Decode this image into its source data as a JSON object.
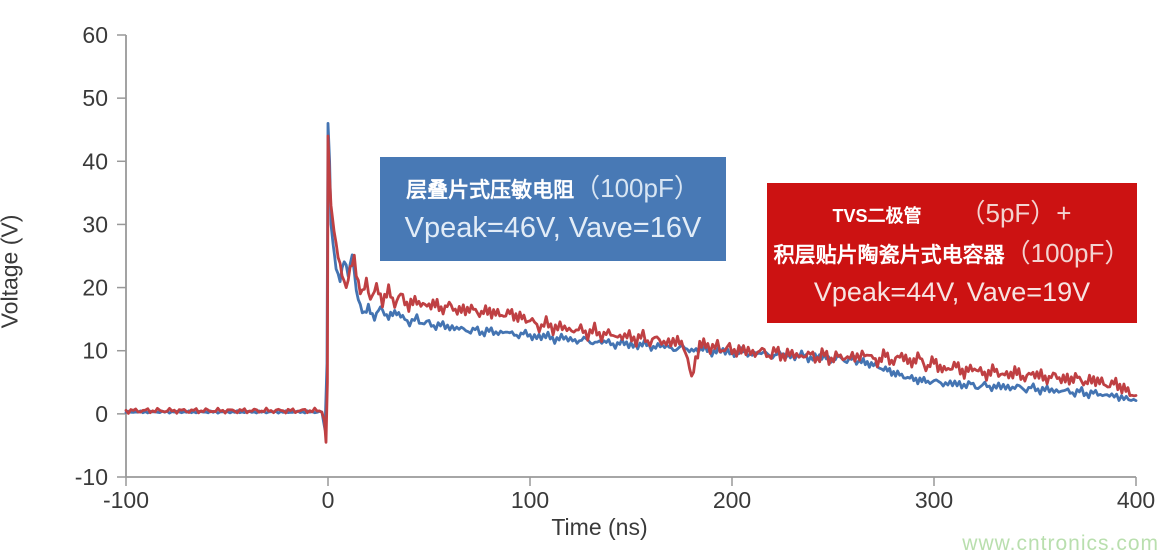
{
  "watermark": {
    "text": "www.cntronics.com",
    "color": "#b9dfae"
  },
  "annotations": {
    "blue_box": {
      "bg": "#4879b5",
      "line1_name": "层叠片式压敏电阻",
      "line1_cap": "（100pF）",
      "line2": "Vpeak=46V, Vave=16V"
    },
    "red_box": {
      "bg": "#cc1212",
      "line1_name": "TVS二极管",
      "line1_cap": "（5pF）+",
      "line2_name": "积层贴片陶瓷片式电容器",
      "line2_cap": "（100pF）",
      "line3": "Vpeak=44V, Vave=19V"
    }
  },
  "chart_data": {
    "type": "line",
    "title": "",
    "xlabel": "Time (ns)",
    "ylabel": "Voltage (V)",
    "xlim": [
      -100,
      400
    ],
    "ylim": [
      -10,
      60
    ],
    "x_ticks": [
      -100,
      0,
      100,
      200,
      300,
      400
    ],
    "y_ticks": [
      60,
      50,
      40,
      30,
      20,
      10,
      0,
      -10
    ],
    "grid": false,
    "legend_position": "none",
    "axis_color": "#999999",
    "tick_label_color": "#3a3a3a",
    "series": [
      {
        "name": "层叠片式压敏电阻（100pF）",
        "color": "#4474b2",
        "vpeak_v": 46,
        "vave_v": 16,
        "noise_amp": 0.9,
        "keypoints": [
          [
            -100,
            0.3
          ],
          [
            -3,
            0.3
          ],
          [
            -1.5,
            -2.5
          ],
          [
            -0.5,
            8
          ],
          [
            0,
            46
          ],
          [
            0.8,
            40
          ],
          [
            1.5,
            30
          ],
          [
            2.5,
            27
          ],
          [
            4,
            23
          ],
          [
            6,
            21
          ],
          [
            8,
            24
          ],
          [
            10,
            22
          ],
          [
            12,
            25
          ],
          [
            14,
            19
          ],
          [
            16,
            17
          ],
          [
            18,
            15.5
          ],
          [
            20,
            16.5
          ],
          [
            23,
            15
          ],
          [
            26,
            16.5
          ],
          [
            30,
            15
          ],
          [
            34,
            16
          ],
          [
            38,
            14.6
          ],
          [
            44,
            14.9
          ],
          [
            50,
            14.2
          ],
          [
            58,
            13.9
          ],
          [
            66,
            13.4
          ],
          [
            74,
            13.1
          ],
          [
            82,
            13
          ],
          [
            90,
            12.8
          ],
          [
            100,
            12.4
          ],
          [
            110,
            12.1
          ],
          [
            120,
            11.8
          ],
          [
            130,
            11.5
          ],
          [
            140,
            11.2
          ],
          [
            150,
            11
          ],
          [
            160,
            10.8
          ],
          [
            170,
            10.5
          ],
          [
            180,
            10.2
          ],
          [
            190,
            10
          ],
          [
            200,
            9.8
          ],
          [
            210,
            9.6
          ],
          [
            220,
            9.4
          ],
          [
            230,
            9.2
          ],
          [
            240,
            9
          ],
          [
            250,
            8.8
          ],
          [
            258,
            8.6
          ],
          [
            264,
            8.4
          ],
          [
            268,
            8.1
          ],
          [
            272,
            7.6
          ],
          [
            276,
            7.1
          ],
          [
            280,
            6.6
          ],
          [
            284,
            6.1
          ],
          [
            288,
            5.7
          ],
          [
            292,
            5.4
          ],
          [
            296,
            5.2
          ],
          [
            300,
            5
          ],
          [
            308,
            4.8
          ],
          [
            316,
            4.6
          ],
          [
            324,
            4.4
          ],
          [
            332,
            4.3
          ],
          [
            340,
            4.2
          ],
          [
            348,
            4
          ],
          [
            356,
            3.8
          ],
          [
            364,
            3.6
          ],
          [
            372,
            3.4
          ],
          [
            380,
            3.2
          ],
          [
            388,
            2.9
          ],
          [
            394,
            2.5
          ],
          [
            400,
            2.1
          ]
        ]
      },
      {
        "name": "TVS二极管（5pF）+ 积层贴片陶瓷片式电容器（100pF）",
        "color": "#bf4043",
        "vpeak_v": 44,
        "vave_v": 19,
        "noise_amp": 1.5,
        "keypoints": [
          [
            -100,
            0.5
          ],
          [
            -3,
            0.5
          ],
          [
            -1.8,
            -1
          ],
          [
            -1,
            -4.5
          ],
          [
            -0.3,
            5
          ],
          [
            0,
            44
          ],
          [
            0.7,
            38
          ],
          [
            1.5,
            33
          ],
          [
            3,
            29
          ],
          [
            5,
            25
          ],
          [
            7,
            22
          ],
          [
            9,
            20.5
          ],
          [
            11,
            23
          ],
          [
            13,
            24.5
          ],
          [
            15,
            21
          ],
          [
            17,
            19
          ],
          [
            19,
            21
          ],
          [
            21,
            18.5
          ],
          [
            24,
            20
          ],
          [
            27,
            18
          ],
          [
            30,
            19.5
          ],
          [
            33,
            17.5
          ],
          [
            36,
            18.8
          ],
          [
            40,
            17
          ],
          [
            44,
            18
          ],
          [
            48,
            16.8
          ],
          [
            52,
            17.5
          ],
          [
            56,
            16.4
          ],
          [
            60,
            17
          ],
          [
            65,
            16
          ],
          [
            70,
            16.5
          ],
          [
            75,
            15.7
          ],
          [
            80,
            16
          ],
          [
            85,
            15.3
          ],
          [
            90,
            15.6
          ],
          [
            95,
            14.9
          ],
          [
            100,
            14.4
          ],
          [
            108,
            14
          ],
          [
            116,
            13.6
          ],
          [
            124,
            13.2
          ],
          [
            132,
            12.9
          ],
          [
            140,
            12.5
          ],
          [
            148,
            12.2
          ],
          [
            156,
            11.9
          ],
          [
            164,
            11.6
          ],
          [
            172,
            11.2
          ],
          [
            176,
            10.6
          ],
          [
            178,
            8.5
          ],
          [
            180,
            5
          ],
          [
            182,
            8.5
          ],
          [
            184,
            10.6
          ],
          [
            188,
            10.8
          ],
          [
            194,
            10.4
          ],
          [
            200,
            10.2
          ],
          [
            208,
            9.9
          ],
          [
            216,
            9.7
          ],
          [
            224,
            9.5
          ],
          [
            232,
            9.3
          ],
          [
            240,
            9.2
          ],
          [
            248,
            9
          ],
          [
            256,
            8.9
          ],
          [
            262,
            9.1
          ],
          [
            268,
            9.4
          ],
          [
            272,
            8.6
          ],
          [
            276,
            9.8
          ],
          [
            280,
            8.4
          ],
          [
            284,
            10
          ],
          [
            288,
            8.2
          ],
          [
            292,
            9.6
          ],
          [
            296,
            7.8
          ],
          [
            300,
            8.8
          ],
          [
            305,
            7.2
          ],
          [
            310,
            8.2
          ],
          [
            315,
            7
          ],
          [
            320,
            7.8
          ],
          [
            325,
            6.6
          ],
          [
            330,
            7.4
          ],
          [
            335,
            6.4
          ],
          [
            340,
            7.1
          ],
          [
            345,
            6.1
          ],
          [
            350,
            6.9
          ],
          [
            355,
            5.9
          ],
          [
            360,
            6.4
          ],
          [
            365,
            5.6
          ],
          [
            370,
            6.1
          ],
          [
            375,
            5.2
          ],
          [
            380,
            5.7
          ],
          [
            385,
            4.7
          ],
          [
            390,
            5
          ],
          [
            395,
            3.8
          ],
          [
            400,
            2.9
          ]
        ]
      }
    ]
  }
}
